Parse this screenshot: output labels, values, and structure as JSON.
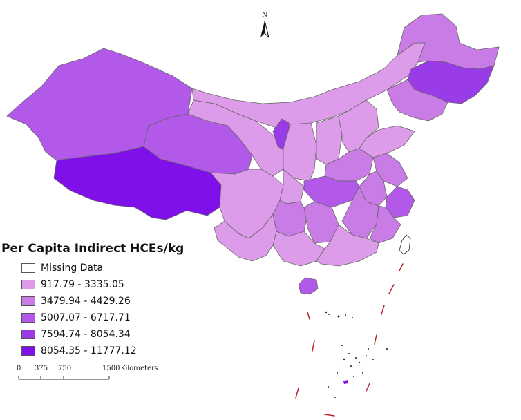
{
  "legend": {
    "title": "Per Capita Indirect HCEs/kg",
    "items": [
      {
        "label": "Missing Data",
        "color": "#ffffff"
      },
      {
        "label": "917.79 - 3335.05",
        "color": "#dd9ce9"
      },
      {
        "label": "3479.94 - 4429.26",
        "color": "#c97be6"
      },
      {
        "label": "5007.07 - 6717.71",
        "color": "#b359e9"
      },
      {
        "label": "7594.74 - 8054.34",
        "color": "#9a3be8"
      },
      {
        "label": "8054.35 - 11777.12",
        "color": "#7f10ea"
      }
    ]
  },
  "scale": {
    "ticks": [
      "0",
      "375",
      "750",
      "1500"
    ],
    "unit": "Kilometers"
  },
  "north": {
    "label": "N"
  },
  "colors": {
    "boundary": "#666666",
    "nine_dash": "#c0202c"
  }
}
